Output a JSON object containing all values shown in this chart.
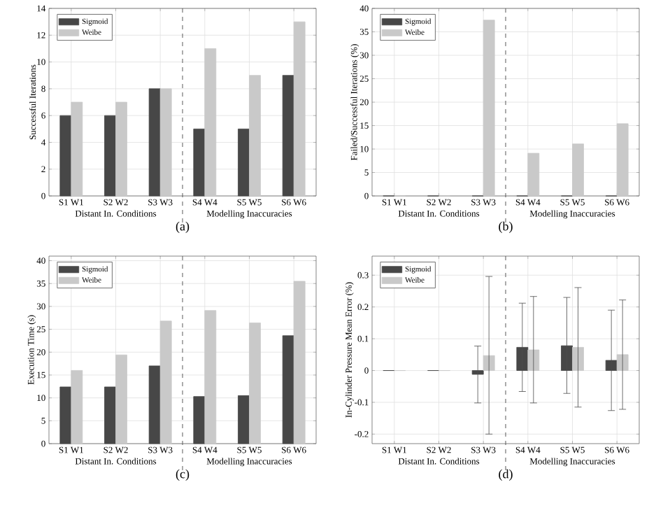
{
  "chart_data": [
    {
      "type": "bar",
      "title": "(a)",
      "ylabel": "Successful Iterations",
      "categories": [
        "S1 W1",
        "S2 W2",
        "S3 W3",
        "S4 W4",
        "S5 W5",
        "S6 W6"
      ],
      "series": [
        {
          "name": "Sigmoid",
          "color": "#474747",
          "values": [
            6,
            6,
            8,
            5,
            5,
            9
          ]
        },
        {
          "name": "Weibe",
          "color": "#c9c9c9",
          "values": [
            7,
            7,
            8,
            11,
            9,
            13
          ]
        }
      ],
      "ylim": [
        0,
        14
      ],
      "yticks": [
        0,
        2,
        4,
        6,
        8,
        10,
        12,
        14
      ],
      "grid": true,
      "legend": "top left",
      "annotations": [
        "Distant In. Conditions",
        "Modelling Inaccuracies"
      ]
    },
    {
      "type": "bar",
      "title": "(b)",
      "ylabel": "Failed/Successful Iterations (%)",
      "categories": [
        "S1 W1",
        "S2 W2",
        "S3 W3",
        "S4 W4",
        "S5 W5",
        "S6 W6"
      ],
      "series": [
        {
          "name": "Sigmoid",
          "color": "#474747",
          "values": [
            0,
            0,
            0,
            0,
            0,
            0
          ]
        },
        {
          "name": "Weibe",
          "color": "#c9c9c9",
          "values": [
            0,
            0,
            37.5,
            9.1,
            11.1,
            15.4
          ]
        }
      ],
      "ylim": [
        0,
        40
      ],
      "yticks": [
        0,
        5,
        10,
        15,
        20,
        25,
        30,
        35,
        40
      ],
      "grid": true,
      "legend": "top left",
      "annotations": [
        "Distant In. Conditions",
        "Modelling Inaccuracies"
      ]
    },
    {
      "type": "bar",
      "title": "(c)",
      "ylabel": "Execution Time (s)",
      "categories": [
        "S1 W1",
        "S2 W2",
        "S3 W3",
        "S4 W4",
        "S5 W5",
        "S6 W6"
      ],
      "series": [
        {
          "name": "Sigmoid",
          "color": "#474747",
          "values": [
            12.4,
            12.4,
            17,
            10.3,
            10.5,
            23.6
          ]
        },
        {
          "name": "Weibe",
          "color": "#c9c9c9",
          "values": [
            16,
            19.4,
            26.8,
            29.1,
            26.4,
            35.5
          ]
        }
      ],
      "ylim": [
        0,
        41
      ],
      "yticks": [
        0,
        5,
        10,
        15,
        20,
        25,
        30,
        35,
        40
      ],
      "grid": true,
      "legend": "top left",
      "annotations": [
        "Distant In. Conditions",
        "Modelling Inaccuracies"
      ]
    },
    {
      "type": "bar",
      "title": "(d)",
      "ylabel": "In-Cylinder Pressure Mean Error (%)",
      "categories": [
        "S1 W1",
        "S2 W2",
        "S3 W3",
        "S4 W4",
        "S5 W5",
        "S6 W6"
      ],
      "series": [
        {
          "name": "Sigmoid",
          "color": "#474747",
          "values": [
            0,
            0,
            -0.012,
            0.073,
            0.078,
            0.032
          ],
          "errors": [
            null,
            null,
            [
              -0.102,
              0.077
            ],
            [
              -0.066,
              0.212
            ],
            [
              -0.072,
              0.23
            ],
            [
              -0.126,
              0.19
            ]
          ]
        },
        {
          "name": "Weibe",
          "color": "#c9c9c9",
          "values": [
            0,
            0,
            0.047,
            0.065,
            0.073,
            0.05
          ],
          "errors": [
            null,
            null,
            [
              -0.2,
              0.296
            ],
            [
              -0.102,
              0.233
            ],
            [
              -0.115,
              0.261
            ],
            [
              -0.122,
              0.222
            ]
          ]
        }
      ],
      "ylim": [
        -0.23,
        0.36
      ],
      "yticks": [
        -0.2,
        -0.1,
        0,
        0.1,
        0.2,
        0.3
      ],
      "grid": true,
      "legend": "top left",
      "annotations": [
        "Distant In. Conditions",
        "Modelling Inaccuracies"
      ]
    }
  ]
}
